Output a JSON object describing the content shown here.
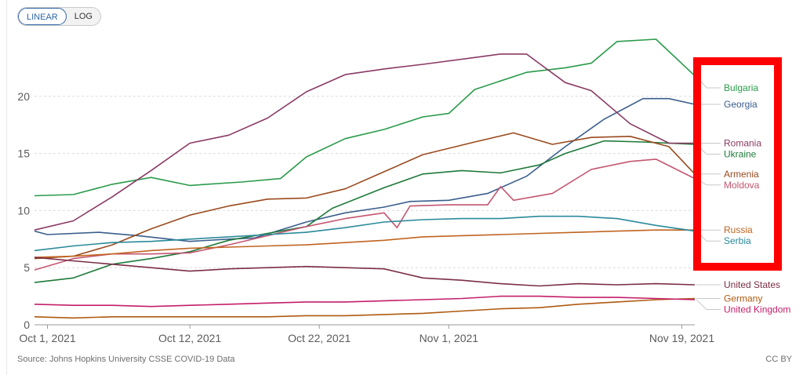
{
  "scale_toggle": {
    "linear_label": "LINEAR",
    "log_label": "LOG",
    "selected": "LINEAR"
  },
  "source_note": "Source: Johns Hopkins University CSSE COVID-19 Data",
  "license": "CC BY",
  "highlight_color": "#ff0000",
  "chart_data": {
    "type": "line",
    "title": "",
    "xlabel": "",
    "ylabel": "",
    "x_range": [
      "2021-09-30",
      "2021-11-20"
    ],
    "ylim": [
      0,
      25
    ],
    "y_ticks": [
      0,
      5,
      10,
      15,
      20
    ],
    "x_ticks": [
      {
        "date": "2021-10-01",
        "label": "Oct 1, 2021"
      },
      {
        "date": "2021-10-12",
        "label": "Oct 12, 2021"
      },
      {
        "date": "2021-10-22",
        "label": "Oct 22, 2021"
      },
      {
        "date": "2021-11-01",
        "label": "Nov 1, 2021"
      },
      {
        "date": "2021-11-19",
        "label": "Nov 19, 2021"
      }
    ],
    "grid": "horizontal dashed",
    "legend": "right, end of lines",
    "series": [
      {
        "name": "Bulgaria",
        "color": "#2a9a4a",
        "points": [
          [
            "2021-09-30",
            11.3
          ],
          [
            "2021-10-03",
            11.4
          ],
          [
            "2021-10-06",
            12.3
          ],
          [
            "2021-10-09",
            12.9
          ],
          [
            "2021-10-12",
            12.2
          ],
          [
            "2021-10-16",
            12.5
          ],
          [
            "2021-10-19",
            12.8
          ],
          [
            "2021-10-21",
            14.7
          ],
          [
            "2021-10-24",
            16.3
          ],
          [
            "2021-10-27",
            17.1
          ],
          [
            "2021-10-30",
            18.2
          ],
          [
            "2021-11-01",
            18.5
          ],
          [
            "2021-11-03",
            20.6
          ],
          [
            "2021-11-07",
            22.1
          ],
          [
            "2021-11-10",
            22.5
          ],
          [
            "2021-11-12",
            22.9
          ],
          [
            "2021-11-14",
            24.8
          ],
          [
            "2021-11-17",
            25.0
          ],
          [
            "2021-11-20",
            21.8
          ]
        ]
      },
      {
        "name": "Georgia",
        "color": "#3a5e8c",
        "points": [
          [
            "2021-09-30",
            8.2
          ],
          [
            "2021-10-01",
            7.9
          ],
          [
            "2021-10-05",
            8.1
          ],
          [
            "2021-10-08",
            7.8
          ],
          [
            "2021-10-12",
            7.3
          ],
          [
            "2021-10-15",
            7.5
          ],
          [
            "2021-10-17",
            7.6
          ],
          [
            "2021-10-21",
            9.0
          ],
          [
            "2021-10-24",
            9.8
          ],
          [
            "2021-10-27",
            10.3
          ],
          [
            "2021-10-29",
            10.8
          ],
          [
            "2021-11-01",
            10.9
          ],
          [
            "2021-11-04",
            11.5
          ],
          [
            "2021-11-07",
            13.0
          ],
          [
            "2021-11-10",
            15.6
          ],
          [
            "2021-11-13",
            18.0
          ],
          [
            "2021-11-16",
            19.8
          ],
          [
            "2021-11-18",
            19.8
          ],
          [
            "2021-11-20",
            19.3
          ]
        ]
      },
      {
        "name": "Ukraine",
        "color": "#1f7a3a",
        "points": [
          [
            "2021-09-30",
            3.7
          ],
          [
            "2021-10-03",
            4.1
          ],
          [
            "2021-10-06",
            5.3
          ],
          [
            "2021-10-09",
            5.8
          ],
          [
            "2021-10-12",
            6.4
          ],
          [
            "2021-10-15",
            7.4
          ],
          [
            "2021-10-18",
            8.0
          ],
          [
            "2021-10-21",
            8.6
          ],
          [
            "2021-10-23",
            10.2
          ],
          [
            "2021-10-27",
            12.0
          ],
          [
            "2021-10-30",
            13.2
          ],
          [
            "2021-11-02",
            13.5
          ],
          [
            "2021-11-05",
            13.3
          ],
          [
            "2021-11-08",
            14.0
          ],
          [
            "2021-11-10",
            15.0
          ],
          [
            "2021-11-13",
            16.1
          ],
          [
            "2021-11-16",
            16.0
          ],
          [
            "2021-11-20",
            15.8
          ]
        ]
      },
      {
        "name": "Romania",
        "color": "#8a3a64",
        "points": [
          [
            "2021-09-30",
            8.3
          ],
          [
            "2021-10-03",
            9.1
          ],
          [
            "2021-10-06",
            11.2
          ],
          [
            "2021-10-09",
            13.5
          ],
          [
            "2021-10-12",
            15.9
          ],
          [
            "2021-10-15",
            16.6
          ],
          [
            "2021-10-18",
            18.1
          ],
          [
            "2021-10-21",
            20.4
          ],
          [
            "2021-10-24",
            21.9
          ],
          [
            "2021-10-27",
            22.4
          ],
          [
            "2021-10-30",
            22.8
          ],
          [
            "2021-11-03",
            23.4
          ],
          [
            "2021-11-05",
            23.7
          ],
          [
            "2021-11-07",
            23.7
          ],
          [
            "2021-11-10",
            21.2
          ],
          [
            "2021-11-12",
            20.5
          ],
          [
            "2021-11-15",
            17.6
          ],
          [
            "2021-11-18",
            15.9
          ],
          [
            "2021-11-20",
            15.9
          ]
        ]
      },
      {
        "name": "Armenia",
        "color": "#9a4a1e",
        "points": [
          [
            "2021-09-30",
            5.8
          ],
          [
            "2021-10-03",
            6.0
          ],
          [
            "2021-10-06",
            7.0
          ],
          [
            "2021-10-09",
            8.4
          ],
          [
            "2021-10-12",
            9.6
          ],
          [
            "2021-10-15",
            10.4
          ],
          [
            "2021-10-18",
            11.0
          ],
          [
            "2021-10-21",
            11.1
          ],
          [
            "2021-10-24",
            11.9
          ],
          [
            "2021-10-27",
            13.4
          ],
          [
            "2021-10-30",
            14.9
          ],
          [
            "2021-11-03",
            16.0
          ],
          [
            "2021-11-06",
            16.8
          ],
          [
            "2021-11-09",
            15.8
          ],
          [
            "2021-11-12",
            16.4
          ],
          [
            "2021-11-15",
            16.5
          ],
          [
            "2021-11-18",
            15.6
          ],
          [
            "2021-11-20",
            13.2
          ]
        ]
      },
      {
        "name": "Moldova",
        "color": "#c45670",
        "points": [
          [
            "2021-09-30",
            4.8
          ],
          [
            "2021-10-03",
            5.8
          ],
          [
            "2021-10-06",
            6.2
          ],
          [
            "2021-10-09",
            6.2
          ],
          [
            "2021-10-12",
            6.3
          ],
          [
            "2021-10-15",
            7.0
          ],
          [
            "2021-10-18",
            7.8
          ],
          [
            "2021-10-21",
            8.6
          ],
          [
            "2021-10-24",
            9.3
          ],
          [
            "2021-10-27",
            9.8
          ],
          [
            "2021-10-28",
            8.5
          ],
          [
            "2021-10-29",
            10.4
          ],
          [
            "2021-11-01",
            10.5
          ],
          [
            "2021-11-04",
            10.5
          ],
          [
            "2021-11-05",
            12.1
          ],
          [
            "2021-11-06",
            10.9
          ],
          [
            "2021-11-09",
            11.5
          ],
          [
            "2021-11-12",
            13.6
          ],
          [
            "2021-11-15",
            14.3
          ],
          [
            "2021-11-17",
            14.5
          ],
          [
            "2021-11-20",
            12.8
          ]
        ]
      },
      {
        "name": "Russia",
        "color": "#c06420",
        "points": [
          [
            "2021-09-30",
            5.9
          ],
          [
            "2021-10-03",
            6.0
          ],
          [
            "2021-10-06",
            6.2
          ],
          [
            "2021-10-09",
            6.5
          ],
          [
            "2021-10-12",
            6.7
          ],
          [
            "2021-10-15",
            6.8
          ],
          [
            "2021-10-18",
            6.9
          ],
          [
            "2021-10-21",
            7.0
          ],
          [
            "2021-10-24",
            7.2
          ],
          [
            "2021-10-27",
            7.4
          ],
          [
            "2021-10-30",
            7.7
          ],
          [
            "2021-11-02",
            7.8
          ],
          [
            "2021-11-05",
            7.9
          ],
          [
            "2021-11-08",
            8.0
          ],
          [
            "2021-11-11",
            8.1
          ],
          [
            "2021-11-14",
            8.2
          ],
          [
            "2021-11-17",
            8.3
          ],
          [
            "2021-11-20",
            8.3
          ]
        ]
      },
      {
        "name": "Serbia",
        "color": "#2a8a9a",
        "points": [
          [
            "2021-09-30",
            6.5
          ],
          [
            "2021-10-03",
            6.9
          ],
          [
            "2021-10-06",
            7.2
          ],
          [
            "2021-10-09",
            7.3
          ],
          [
            "2021-10-12",
            7.5
          ],
          [
            "2021-10-15",
            7.7
          ],
          [
            "2021-10-18",
            7.9
          ],
          [
            "2021-10-21",
            8.1
          ],
          [
            "2021-10-24",
            8.5
          ],
          [
            "2021-10-27",
            9.0
          ],
          [
            "2021-10-30",
            9.2
          ],
          [
            "2021-11-02",
            9.3
          ],
          [
            "2021-11-05",
            9.3
          ],
          [
            "2021-11-08",
            9.5
          ],
          [
            "2021-11-11",
            9.5
          ],
          [
            "2021-11-14",
            9.3
          ],
          [
            "2021-11-17",
            8.7
          ],
          [
            "2021-11-20",
            8.2
          ]
        ]
      },
      {
        "name": "United States",
        "color": "#7a2e44",
        "points": [
          [
            "2021-09-30",
            5.9
          ],
          [
            "2021-10-03",
            5.6
          ],
          [
            "2021-10-06",
            5.3
          ],
          [
            "2021-10-09",
            5.0
          ],
          [
            "2021-10-12",
            4.7
          ],
          [
            "2021-10-15",
            4.9
          ],
          [
            "2021-10-18",
            5.0
          ],
          [
            "2021-10-21",
            5.1
          ],
          [
            "2021-10-24",
            5.0
          ],
          [
            "2021-10-27",
            4.9
          ],
          [
            "2021-10-30",
            4.1
          ],
          [
            "2021-11-02",
            3.9
          ],
          [
            "2021-11-05",
            3.6
          ],
          [
            "2021-11-08",
            3.4
          ],
          [
            "2021-11-11",
            3.6
          ],
          [
            "2021-11-14",
            3.5
          ],
          [
            "2021-11-17",
            3.6
          ],
          [
            "2021-11-20",
            3.5
          ]
        ]
      },
      {
        "name": "Germany",
        "color": "#b05a10",
        "points": [
          [
            "2021-09-30",
            0.7
          ],
          [
            "2021-10-03",
            0.6
          ],
          [
            "2021-10-06",
            0.7
          ],
          [
            "2021-10-09",
            0.7
          ],
          [
            "2021-10-12",
            0.7
          ],
          [
            "2021-10-15",
            0.7
          ],
          [
            "2021-10-18",
            0.7
          ],
          [
            "2021-10-21",
            0.8
          ],
          [
            "2021-10-24",
            0.8
          ],
          [
            "2021-10-27",
            0.9
          ],
          [
            "2021-10-30",
            1.0
          ],
          [
            "2021-11-02",
            1.2
          ],
          [
            "2021-11-05",
            1.4
          ],
          [
            "2021-11-08",
            1.5
          ],
          [
            "2021-11-11",
            1.8
          ],
          [
            "2021-11-14",
            2.0
          ],
          [
            "2021-11-17",
            2.2
          ],
          [
            "2021-11-20",
            2.3
          ]
        ]
      },
      {
        "name": "United Kingdom",
        "color": "#c41e6a",
        "points": [
          [
            "2021-09-30",
            1.8
          ],
          [
            "2021-10-03",
            1.7
          ],
          [
            "2021-10-06",
            1.7
          ],
          [
            "2021-10-09",
            1.6
          ],
          [
            "2021-10-12",
            1.7
          ],
          [
            "2021-10-15",
            1.8
          ],
          [
            "2021-10-18",
            1.9
          ],
          [
            "2021-10-21",
            2.0
          ],
          [
            "2021-10-24",
            2.0
          ],
          [
            "2021-10-27",
            2.1
          ],
          [
            "2021-10-30",
            2.2
          ],
          [
            "2021-11-02",
            2.3
          ],
          [
            "2021-11-05",
            2.5
          ],
          [
            "2021-11-08",
            2.5
          ],
          [
            "2021-11-11",
            2.4
          ],
          [
            "2021-11-14",
            2.4
          ],
          [
            "2021-11-17",
            2.3
          ],
          [
            "2021-11-20",
            2.2
          ]
        ]
      }
    ]
  }
}
